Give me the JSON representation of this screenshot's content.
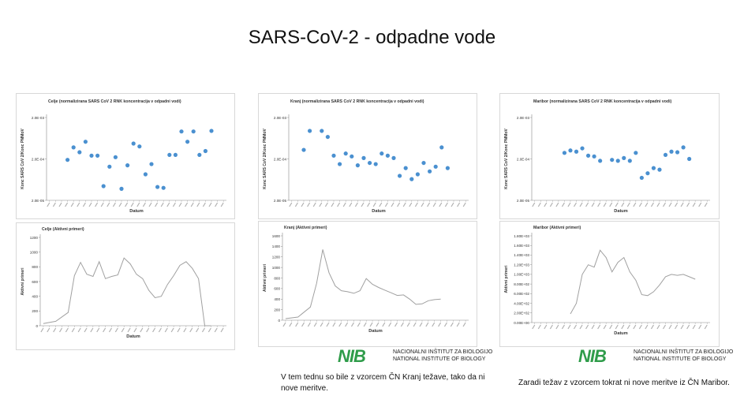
{
  "slide": {
    "title": "SARS-CoV-2 - odpadne vode",
    "note_kranj": "V tem tednu so bile z vzorcem ČN Kranj težave, tako da ni nove meritve.",
    "note_maribor": "Zaradi težav z vzorcem tokrat ni nove meritve iz ČN Maribor.",
    "logo": {
      "mark": "NIB",
      "line1": "NACIONALNI INŠTITUT ZA BIOLOGIJO",
      "line2": "NATIONAL INSTITUTE OF BIOLOGY"
    },
    "colors": {
      "marker": "#4a90d0",
      "line": "#a0a0a0",
      "logo": "#2f9c4a"
    }
  },
  "chart_data": [
    {
      "id": "celje-conc",
      "type": "scatter",
      "title": "Celje (normalizirana SARS CoV 2 RNK koncentracija v odpadni vodi)",
      "xlabel": "Datum",
      "ylabel": "Konc SARS CoV 2/Konc PMMoV",
      "yscale": "log",
      "yticks": [
        "2.0E-03",
        "2.0E-04",
        "2.0E-05"
      ],
      "ylim": [
        2e-05,
        0.002
      ],
      "grid": false,
      "x": [
        3,
        4,
        5,
        6,
        7,
        8,
        9,
        10,
        11,
        12,
        13,
        14,
        15,
        16,
        17,
        18,
        19,
        20,
        21,
        22,
        23,
        24,
        25,
        26,
        27
      ],
      "values": [
        0.00019,
        0.00038,
        0.00029,
        0.00052,
        0.00024,
        0.00024,
        4.4e-05,
        0.00013,
        0.00022,
        3.8e-05,
        0.00014,
        0.00047,
        0.0004,
        8.5e-05,
        0.00015,
        4.2e-05,
        4e-05,
        0.00025,
        0.00025,
        0.00092,
        0.00052,
        0.00092,
        0.00025,
        0.00031,
        0.00095
      ]
    },
    {
      "id": "kranj-conc",
      "type": "scatter",
      "title": "Kranj (normalizirana SARS CoV 2 RNK koncentracija v odpadni vodi)",
      "xlabel": "Datum",
      "ylabel": "Konc SARS CoV 2/Konc PMMoV",
      "yscale": "log",
      "yticks": [
        "2.0E-03",
        "2.0E-04",
        "2.0E-05"
      ],
      "ylim": [
        2e-05,
        0.002
      ],
      "grid": false,
      "x": [
        2,
        3,
        5,
        6,
        7,
        8,
        9,
        10,
        11,
        12,
        13,
        14,
        15,
        16,
        17,
        18,
        19,
        20,
        21,
        22,
        23,
        24,
        25,
        26
      ],
      "values": [
        0.00033,
        0.00095,
        0.00095,
        0.00068,
        0.00024,
        0.00015,
        0.00027,
        0.00023,
        0.00014,
        0.00021,
        0.00016,
        0.00015,
        0.00027,
        0.00024,
        0.00021,
        7.8e-05,
        0.00012,
        6.5e-05,
        8.5e-05,
        0.00016,
        0.0001,
        0.00013,
        0.00038,
        0.00012
      ]
    },
    {
      "id": "maribor-conc",
      "type": "scatter",
      "title": "Maribor (normalizirana SARS CoV 2 RNK koncentracija v odpadni vodi)",
      "xlabel": "Datum",
      "ylabel": "Konc SARS CoV 2/Konc PMMoV",
      "yscale": "log",
      "yticks": [
        "2.0E-03",
        "2.0E-04",
        "2.0E-05"
      ],
      "ylim": [
        2e-05,
        0.002
      ],
      "grid": false,
      "x": [
        5,
        6,
        7,
        8,
        9,
        10,
        11,
        13,
        14,
        15,
        16,
        17,
        18,
        19,
        20,
        21,
        22,
        23,
        24,
        25,
        26
      ],
      "values": [
        0.00028,
        0.00032,
        0.0003,
        0.00036,
        0.00024,
        0.00023,
        0.00018,
        0.00019,
        0.00018,
        0.00021,
        0.00018,
        0.00028,
        7e-05,
        9e-05,
        0.00012,
        0.00011,
        0.00025,
        0.0003,
        0.00029,
        0.00038,
        0.0002
      ]
    },
    {
      "id": "celje-active",
      "type": "line",
      "title": "Celje (Aktivni primeri)",
      "xlabel": "Datum",
      "ylabel": "Aktivni primeri",
      "ylim": [
        0,
        1200
      ],
      "yticks": [
        "0",
        "200",
        "400",
        "600",
        "800",
        "1000",
        "1200"
      ],
      "grid": false,
      "x": [
        0,
        2,
        4,
        5,
        6,
        7,
        8,
        9,
        10,
        11,
        12,
        13,
        14,
        15,
        16,
        17,
        18,
        19,
        20,
        21,
        22,
        23,
        24,
        25,
        26,
        27
      ],
      "values": [
        30,
        60,
        180,
        680,
        860,
        700,
        670,
        870,
        640,
        670,
        690,
        920,
        840,
        700,
        640,
        480,
        380,
        400,
        560,
        680,
        820,
        870,
        780,
        640,
        0,
        0
      ]
    },
    {
      "id": "kranj-active",
      "type": "line",
      "title": "Kranj (Aktivni primeri)",
      "xlabel": "Datum",
      "ylabel": "Aktivni primeri",
      "ylim": [
        0,
        1600
      ],
      "yticks": [
        "0",
        "200",
        "400",
        "600",
        "800",
        "1000",
        "1200",
        "1400",
        "1600"
      ],
      "grid": false,
      "x": [
        0,
        2,
        4,
        5,
        6,
        7,
        8,
        9,
        10,
        11,
        12,
        13,
        14,
        15,
        16,
        17,
        18,
        19,
        20,
        21,
        22,
        23,
        24,
        25
      ],
      "values": [
        30,
        60,
        250,
        700,
        1340,
        900,
        650,
        560,
        540,
        510,
        560,
        790,
        680,
        620,
        570,
        520,
        470,
        480,
        400,
        300,
        310,
        370,
        390,
        400
      ]
    },
    {
      "id": "maribor-active",
      "type": "line",
      "title": "Maribor (Aktivni primeri)",
      "xlabel": "Datum",
      "ylabel": "Aktivni primeri",
      "ylim": [
        0,
        1800
      ],
      "yticks": [
        "0.00E+00",
        "2.00E+02",
        "4.00E+02",
        "6.00E+02",
        "8.00E+02",
        "1.00E+03",
        "1.20E+03",
        "1.40E+03",
        "1.60E+03",
        "1.80E+03"
      ],
      "grid": false,
      "x": [
        6,
        7,
        8,
        9,
        10,
        11,
        12,
        13,
        14,
        15,
        16,
        17,
        18,
        19,
        20,
        21,
        22,
        23,
        24,
        25,
        26,
        27
      ],
      "values": [
        180,
        400,
        1000,
        1200,
        1150,
        1500,
        1350,
        1050,
        1250,
        1350,
        1050,
        880,
        580,
        560,
        640,
        780,
        950,
        1000,
        980,
        1000,
        950,
        900
      ]
    }
  ]
}
